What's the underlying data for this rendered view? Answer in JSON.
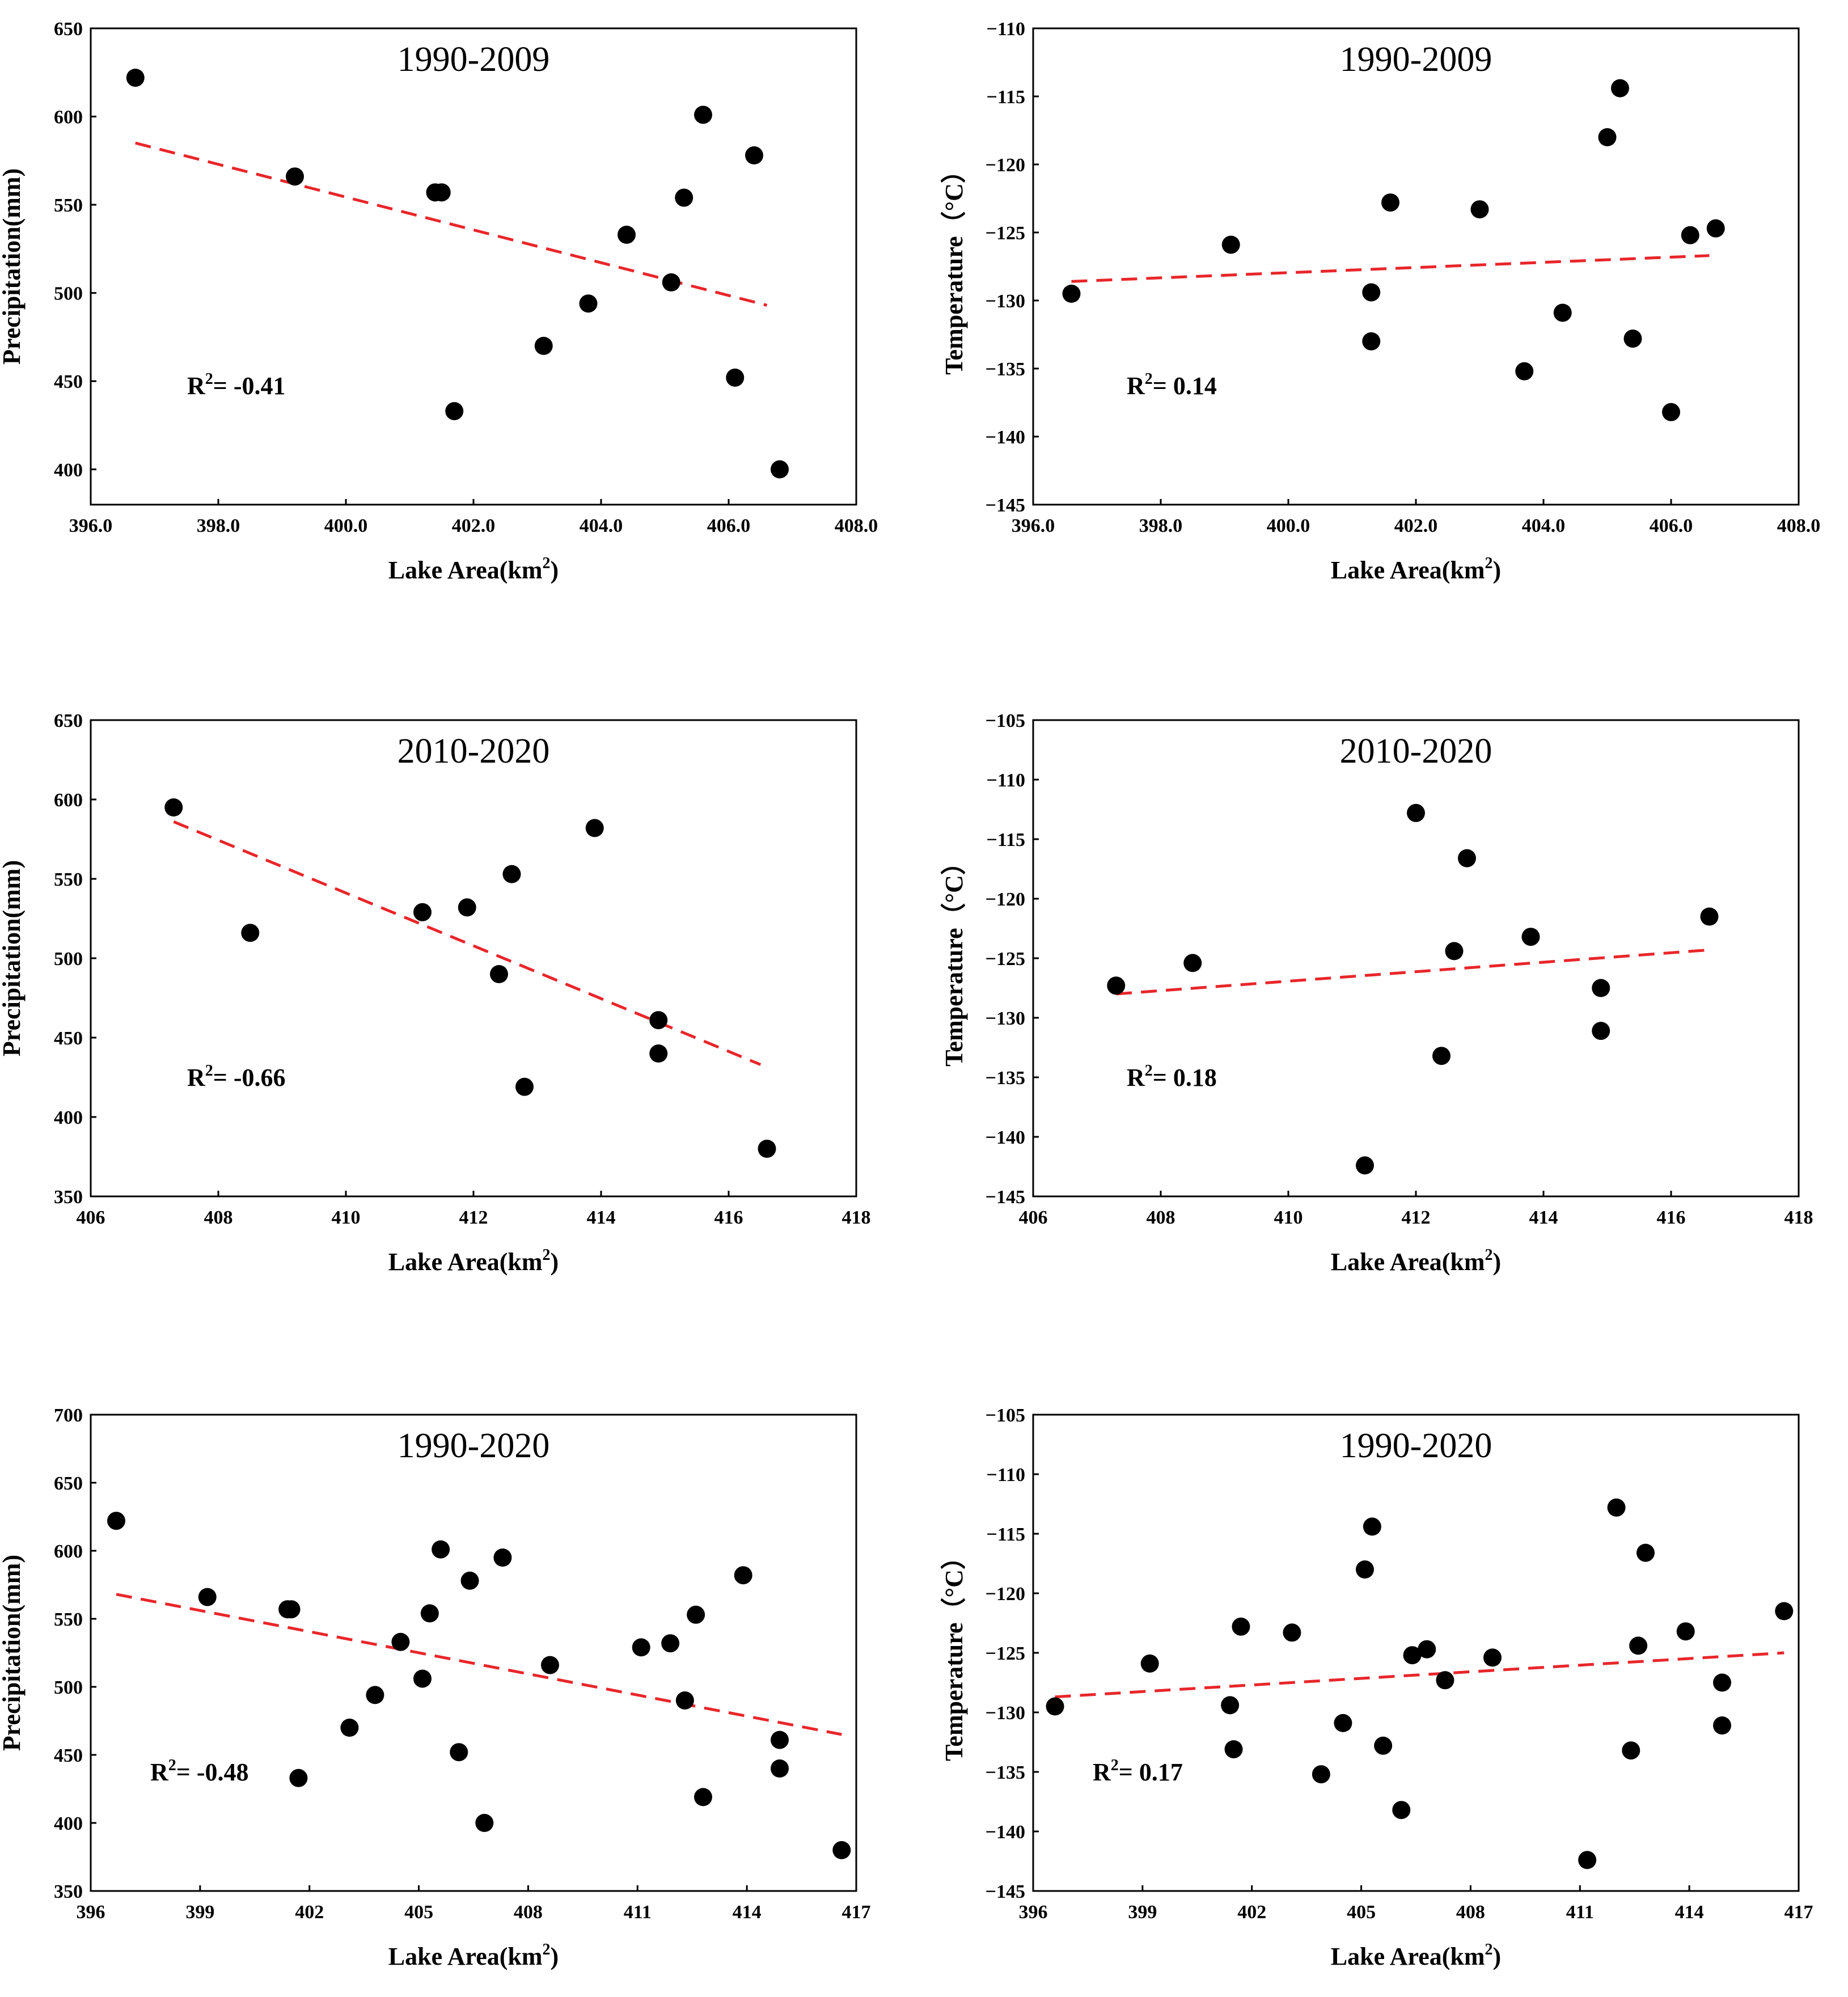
{
  "chart_data": [
    {
      "type": "scatter",
      "title": "1990-2009",
      "xlabel": "Lake Area(km",
      "xlabel_sup": "2",
      "xlabel_tail": ")",
      "ylabel": "Precipitation(mm)",
      "xlim": [
        396,
        408
      ],
      "ylim": [
        380,
        650
      ],
      "xticks": [
        396,
        398,
        400,
        402,
        404,
        406,
        408
      ],
      "xtick_labels": [
        "396.0",
        "398.0",
        "400.0",
        "402.0",
        "404.0",
        "406.0",
        "408.0"
      ],
      "yticks": [
        400,
        450,
        500,
        550,
        600,
        650
      ],
      "ytick_labels": [
        "400",
        "450",
        "500",
        "550",
        "600",
        "650"
      ],
      "r2_prefix": "R",
      "r2_sup": "2",
      "r2_value": "= -0.41",
      "points": [
        {
          "x": 396.7,
          "y": 622
        },
        {
          "x": 399.2,
          "y": 566
        },
        {
          "x": 401.4,
          "y": 557
        },
        {
          "x": 401.5,
          "y": 557
        },
        {
          "x": 401.7,
          "y": 433
        },
        {
          "x": 403.1,
          "y": 470
        },
        {
          "x": 403.8,
          "y": 494
        },
        {
          "x": 404.4,
          "y": 533
        },
        {
          "x": 405.1,
          "y": 506
        },
        {
          "x": 405.3,
          "y": 554
        },
        {
          "x": 405.6,
          "y": 601
        },
        {
          "x": 406.1,
          "y": 452
        },
        {
          "x": 406.4,
          "y": 578
        },
        {
          "x": 406.8,
          "y": 400
        }
      ],
      "trend": {
        "x1": 396.7,
        "y1": 585,
        "x2": 406.6,
        "y2": 493
      }
    },
    {
      "type": "scatter",
      "title": "1990-2009",
      "xlabel": "Lake Area(km",
      "xlabel_sup": "2",
      "xlabel_tail": ")",
      "ylabel": "Temperature（°C）",
      "xlim": [
        396,
        408
      ],
      "ylim": [
        -145,
        -110
      ],
      "xticks": [
        396,
        398,
        400,
        402,
        404,
        406,
        408
      ],
      "xtick_labels": [
        "396.0",
        "398.0",
        "400.0",
        "402.0",
        "404.0",
        "406.0",
        "408.0"
      ],
      "yticks": [
        -145,
        -140,
        -135,
        -130,
        -125,
        -120,
        -115,
        -110
      ],
      "ytick_labels": [
        "−145",
        "−140",
        "−135",
        "−130",
        "−125",
        "−120",
        "−115",
        "−110"
      ],
      "r2_prefix": "R",
      "r2_sup": "2",
      "r2_value": "= 0.14",
      "points": [
        {
          "x": 396.6,
          "y": -129.5
        },
        {
          "x": 399.1,
          "y": -125.9
        },
        {
          "x": 401.3,
          "y": -129.4
        },
        {
          "x": 401.3,
          "y": -133.0
        },
        {
          "x": 401.6,
          "y": -122.8
        },
        {
          "x": 403.0,
          "y": -123.3
        },
        {
          "x": 403.7,
          "y": -135.2
        },
        {
          "x": 404.3,
          "y": -130.9
        },
        {
          "x": 405.0,
          "y": -118.0
        },
        {
          "x": 405.2,
          "y": -114.4
        },
        {
          "x": 405.4,
          "y": -132.8
        },
        {
          "x": 406.0,
          "y": -138.2
        },
        {
          "x": 406.3,
          "y": -125.2
        },
        {
          "x": 406.7,
          "y": -124.7
        }
      ],
      "trend": {
        "x1": 396.6,
        "y1": -128.6,
        "x2": 406.6,
        "y2": -126.7
      }
    },
    {
      "type": "scatter",
      "title": "2010-2020",
      "xlabel": "Lake Area(km",
      "xlabel_sup": "2",
      "xlabel_tail": ")",
      "ylabel": "Precipitation(mm)",
      "xlim": [
        406,
        418
      ],
      "ylim": [
        350,
        650
      ],
      "xticks": [
        406,
        408,
        410,
        412,
        414,
        416,
        418
      ],
      "xtick_labels": [
        "406",
        "408",
        "410",
        "412",
        "414",
        "416",
        "418"
      ],
      "yticks": [
        350,
        400,
        450,
        500,
        550,
        600,
        650
      ],
      "ytick_labels": [
        "350",
        "400",
        "450",
        "500",
        "550",
        "600",
        "650"
      ],
      "r2_prefix": "R",
      "r2_sup": "2",
      "r2_value": "= -0.66",
      "points": [
        {
          "x": 407.3,
          "y": 595
        },
        {
          "x": 408.5,
          "y": 516
        },
        {
          "x": 411.2,
          "y": 529
        },
        {
          "x": 411.9,
          "y": 532
        },
        {
          "x": 412.4,
          "y": 490
        },
        {
          "x": 412.6,
          "y": 553
        },
        {
          "x": 412.8,
          "y": 419
        },
        {
          "x": 413.9,
          "y": 582
        },
        {
          "x": 414.9,
          "y": 461
        },
        {
          "x": 414.9,
          "y": 440
        },
        {
          "x": 416.6,
          "y": 380
        }
      ],
      "trend": {
        "x1": 407.3,
        "y1": 586,
        "x2": 416.5,
        "y2": 433
      }
    },
    {
      "type": "scatter",
      "title": "2010-2020",
      "xlabel": "Lake Area(km",
      "xlabel_sup": "2",
      "xlabel_tail": ")",
      "ylabel": "Temperature（°C）",
      "xlim": [
        406,
        418
      ],
      "ylim": [
        -145,
        -105
      ],
      "xticks": [
        406,
        408,
        410,
        412,
        414,
        416,
        418
      ],
      "xtick_labels": [
        "406",
        "408",
        "410",
        "412",
        "414",
        "416",
        "418"
      ],
      "yticks": [
        -145,
        -140,
        -135,
        -130,
        -125,
        -120,
        -115,
        -110,
        -105
      ],
      "ytick_labels": [
        "−145",
        "−140",
        "−135",
        "−130",
        "−125",
        "−120",
        "−115",
        "−110",
        "−105"
      ],
      "r2_prefix": "R",
      "r2_sup": "2",
      "r2_value": "= 0.18",
      "points": [
        {
          "x": 407.3,
          "y": -127.3
        },
        {
          "x": 408.5,
          "y": -125.4
        },
        {
          "x": 411.2,
          "y": -142.4
        },
        {
          "x": 412.0,
          "y": -112.8
        },
        {
          "x": 412.4,
          "y": -133.2
        },
        {
          "x": 412.6,
          "y": -124.4
        },
        {
          "x": 412.8,
          "y": -116.6
        },
        {
          "x": 413.8,
          "y": -123.2
        },
        {
          "x": 414.9,
          "y": -127.5
        },
        {
          "x": 414.9,
          "y": -131.1
        },
        {
          "x": 416.6,
          "y": -121.5
        }
      ],
      "trend": {
        "x1": 407.3,
        "y1": -128.0,
        "x2": 416.6,
        "y2": -124.3
      }
    },
    {
      "type": "scatter",
      "title": "1990-2020",
      "xlabel": "Lake Area(km",
      "xlabel_sup": "2",
      "xlabel_tail": ")",
      "ylabel": "Precipitation(mm)",
      "xlim": [
        396,
        417
      ],
      "ylim": [
        350,
        700
      ],
      "xticks": [
        396,
        399,
        402,
        405,
        408,
        411,
        414,
        417
      ],
      "xtick_labels": [
        "396",
        "399",
        "402",
        "405",
        "408",
        "411",
        "414",
        "417"
      ],
      "yticks": [
        350,
        400,
        450,
        500,
        550,
        600,
        650,
        700
      ],
      "ytick_labels": [
        "350",
        "400",
        "450",
        "500",
        "550",
        "600",
        "650",
        "700"
      ],
      "r2_prefix": "R",
      "r2_sup": "2",
      "r2_value": "= -0.48",
      "points": [
        {
          "x": 396.7,
          "y": 622
        },
        {
          "x": 399.2,
          "y": 566
        },
        {
          "x": 401.4,
          "y": 557
        },
        {
          "x": 401.5,
          "y": 557
        },
        {
          "x": 401.7,
          "y": 433
        },
        {
          "x": 403.1,
          "y": 470
        },
        {
          "x": 403.8,
          "y": 494
        },
        {
          "x": 404.5,
          "y": 533
        },
        {
          "x": 405.1,
          "y": 506
        },
        {
          "x": 405.3,
          "y": 554
        },
        {
          "x": 405.6,
          "y": 601
        },
        {
          "x": 406.1,
          "y": 452
        },
        {
          "x": 406.4,
          "y": 578
        },
        {
          "x": 406.8,
          "y": 400
        },
        {
          "x": 407.3,
          "y": 595
        },
        {
          "x": 408.6,
          "y": 516
        },
        {
          "x": 411.1,
          "y": 529
        },
        {
          "x": 411.9,
          "y": 532
        },
        {
          "x": 412.3,
          "y": 490
        },
        {
          "x": 412.6,
          "y": 553
        },
        {
          "x": 412.8,
          "y": 419
        },
        {
          "x": 413.9,
          "y": 582
        },
        {
          "x": 414.9,
          "y": 461
        },
        {
          "x": 414.9,
          "y": 440
        },
        {
          "x": 416.6,
          "y": 380
        }
      ],
      "trend": {
        "x1": 396.7,
        "y1": 568,
        "x2": 416.6,
        "y2": 465
      }
    },
    {
      "type": "scatter",
      "title": "1990-2020",
      "xlabel": "Lake Area(km",
      "xlabel_sup": "2",
      "xlabel_tail": ")",
      "ylabel": "Temperature（°C）",
      "xlim": [
        396,
        417
      ],
      "ylim": [
        -145,
        -105
      ],
      "xticks": [
        396,
        399,
        402,
        405,
        408,
        411,
        414,
        417
      ],
      "xtick_labels": [
        "396",
        "399",
        "402",
        "405",
        "408",
        "411",
        "414",
        "417"
      ],
      "yticks": [
        -145,
        -140,
        -135,
        -130,
        -125,
        -120,
        -115,
        -110,
        -105
      ],
      "ytick_labels": [
        "−145",
        "−140",
        "−135",
        "−130",
        "−125",
        "−120",
        "−115",
        "−110",
        "−105"
      ],
      "r2_prefix": "R",
      "r2_sup": "2",
      "r2_value": "= 0.17",
      "points": [
        {
          "x": 396.6,
          "y": -129.5
        },
        {
          "x": 399.2,
          "y": -125.9
        },
        {
          "x": 401.4,
          "y": -129.4
        },
        {
          "x": 401.5,
          "y": -133.1
        },
        {
          "x": 401.7,
          "y": -122.8
        },
        {
          "x": 403.1,
          "y": -123.3
        },
        {
          "x": 403.9,
          "y": -135.2
        },
        {
          "x": 404.5,
          "y": -130.9
        },
        {
          "x": 405.1,
          "y": -118.0
        },
        {
          "x": 405.3,
          "y": -114.4
        },
        {
          "x": 405.6,
          "y": -132.8
        },
        {
          "x": 406.1,
          "y": -138.2
        },
        {
          "x": 406.4,
          "y": -125.2
        },
        {
          "x": 406.8,
          "y": -124.7
        },
        {
          "x": 407.3,
          "y": -127.3
        },
        {
          "x": 408.6,
          "y": -125.4
        },
        {
          "x": 411.2,
          "y": -142.4
        },
        {
          "x": 412.0,
          "y": -112.8
        },
        {
          "x": 412.4,
          "y": -133.2
        },
        {
          "x": 412.6,
          "y": -124.4
        },
        {
          "x": 412.8,
          "y": -116.6
        },
        {
          "x": 413.9,
          "y": -123.2
        },
        {
          "x": 414.9,
          "y": -127.5
        },
        {
          "x": 414.9,
          "y": -131.1
        },
        {
          "x": 416.6,
          "y": -121.5
        }
      ],
      "trend": {
        "x1": 396.6,
        "y1": -128.7,
        "x2": 416.6,
        "y2": -125.0
      }
    }
  ]
}
